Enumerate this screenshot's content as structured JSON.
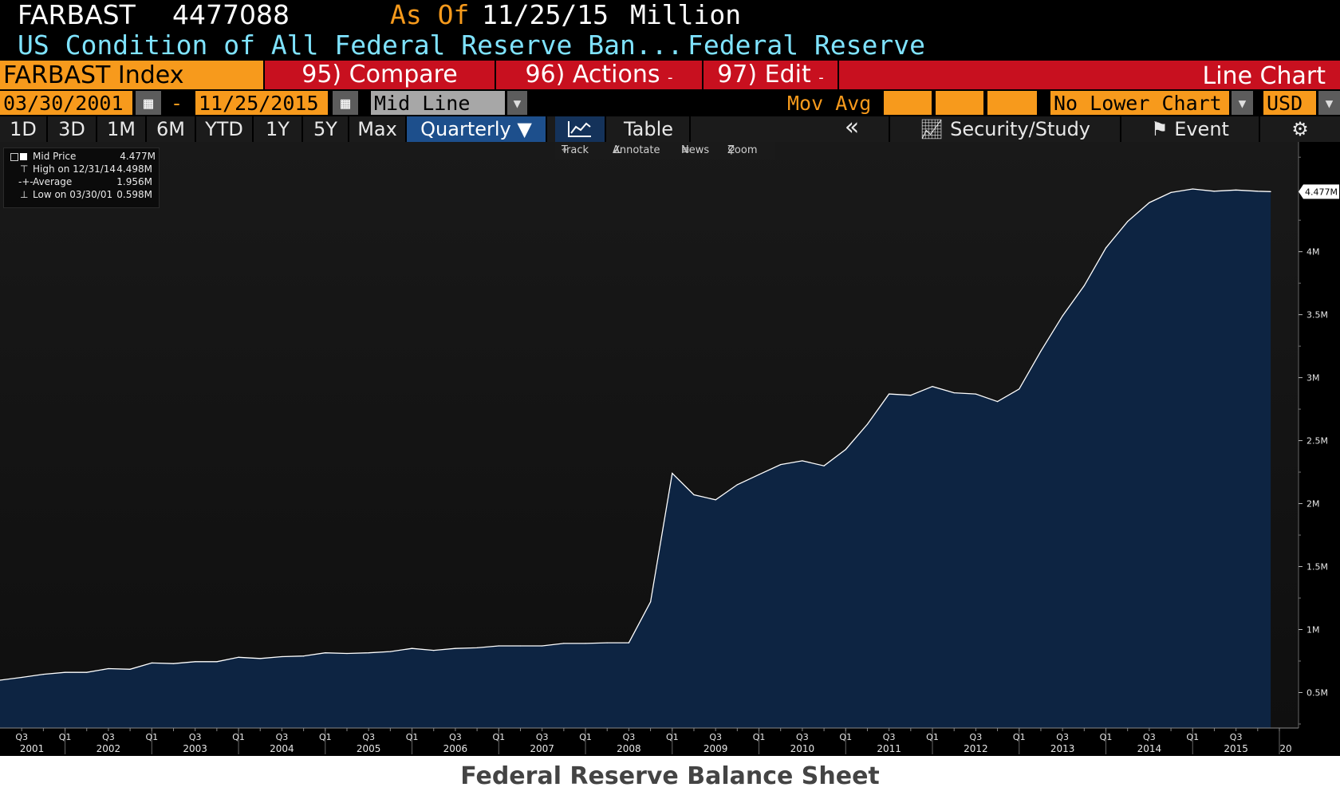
{
  "header": {
    "ticker": "FARBAST",
    "last_value": "4477088",
    "as_of_label": "As Of",
    "as_of_date": "11/25/15",
    "units": "Million",
    "description": "US Condition of All Federal Reserve Ban...",
    "source": "Federal Reserve"
  },
  "toolbar": {
    "index_name": "FARBAST Index",
    "compare_label": "95) Compare",
    "actions_label": "96) Actions",
    "actions_arrow": "-",
    "edit_label": "97) Edit",
    "edit_arrow": "-",
    "chart_type": "Line Chart"
  },
  "range": {
    "start_date": "03/30/2001",
    "separator": "-",
    "end_date": "11/25/2015",
    "line_type": "Mid Line",
    "mov_avg_label": "Mov Avg",
    "lower_chart": "No Lower Chart",
    "currency": "USD"
  },
  "periods": [
    "1D",
    "3D",
    "1M",
    "6M",
    "YTD",
    "1Y",
    "5Y",
    "Max"
  ],
  "frequency": "Quarterly ▼",
  "view_tabs": {
    "table": "Table",
    "collapse": "«",
    "security_study": "Security/Study",
    "event": "Event"
  },
  "chart_tools": {
    "track": "Track",
    "annotate": "Annotate",
    "news": "News",
    "zoom": "Zoom"
  },
  "legend": {
    "mid_price_label": "Mid Price",
    "mid_price_value": "4.477M",
    "high_label": "High on 12/31/14",
    "high_value": "4.498M",
    "average_label": "Average",
    "average_value": "1.956M",
    "low_label": "Low on 03/30/01",
    "low_value": "0.598M"
  },
  "last_price_tag": "4.477M",
  "caption": "Federal Reserve Balance Sheet",
  "colors": {
    "orange": "#f79a1c",
    "red": "#c8101f",
    "cyan": "#7fe3ff",
    "fill": "#0d2442",
    "line": "#ffffff"
  },
  "chart_data": {
    "type": "area",
    "title": "",
    "xlabel": "",
    "ylabel": "",
    "ylim": [
      0.25,
      5.0
    ],
    "y_ticks": [
      0.5,
      1,
      1.5,
      2,
      2.5,
      3,
      3.5,
      4
    ],
    "y_tick_labels": [
      "0.5M",
      "1M",
      "1.5M",
      "2M",
      "2.5M",
      "3M",
      "3.5M",
      "4M"
    ],
    "x_years": [
      "2001",
      "2002",
      "2003",
      "2004",
      "2005",
      "2006",
      "2007",
      "2008",
      "2009",
      "2010",
      "2011",
      "2012",
      "2013",
      "2014",
      "2015"
    ],
    "x_year_stub": "20",
    "x_quarter_labels": [
      {
        "year": 2001,
        "q": "Q3"
      },
      {
        "year": 2002,
        "q": "Q1"
      },
      {
        "year": 2002,
        "q": "Q3"
      },
      {
        "year": 2003,
        "q": "Q1"
      },
      {
        "year": 2003,
        "q": "Q3"
      },
      {
        "year": 2004,
        "q": "Q1"
      },
      {
        "year": 2004,
        "q": "Q3"
      },
      {
        "year": 2005,
        "q": "Q1"
      },
      {
        "year": 2005,
        "q": "Q3"
      },
      {
        "year": 2006,
        "q": "Q1"
      },
      {
        "year": 2006,
        "q": "Q3"
      },
      {
        "year": 2007,
        "q": "Q1"
      },
      {
        "year": 2007,
        "q": "Q3"
      },
      {
        "year": 2008,
        "q": "Q1"
      },
      {
        "year": 2008,
        "q": "Q3"
      },
      {
        "year": 2009,
        "q": "Q1"
      },
      {
        "year": 2009,
        "q": "Q3"
      },
      {
        "year": 2010,
        "q": "Q1"
      },
      {
        "year": 2010,
        "q": "Q3"
      },
      {
        "year": 2011,
        "q": "Q1"
      },
      {
        "year": 2011,
        "q": "Q3"
      },
      {
        "year": 2012,
        "q": "Q1"
      },
      {
        "year": 2012,
        "q": "Q3"
      },
      {
        "year": 2013,
        "q": "Q1"
      },
      {
        "year": 2013,
        "q": "Q3"
      },
      {
        "year": 2014,
        "q": "Q1"
      },
      {
        "year": 2014,
        "q": "Q3"
      },
      {
        "year": 2015,
        "q": "Q1"
      },
      {
        "year": 2015,
        "q": "Q3"
      }
    ],
    "series": [
      {
        "values": [
          [
            2001.25,
            0.598
          ],
          [
            2001.5,
            0.62
          ],
          [
            2001.75,
            0.645
          ],
          [
            2002.0,
            0.66
          ],
          [
            2002.25,
            0.66
          ],
          [
            2002.5,
            0.69
          ],
          [
            2002.75,
            0.685
          ],
          [
            2003.0,
            0.735
          ],
          [
            2003.25,
            0.73
          ],
          [
            2003.5,
            0.745
          ],
          [
            2003.75,
            0.745
          ],
          [
            2004.0,
            0.78
          ],
          [
            2004.25,
            0.77
          ],
          [
            2004.5,
            0.785
          ],
          [
            2004.75,
            0.79
          ],
          [
            2005.0,
            0.815
          ],
          [
            2005.25,
            0.81
          ],
          [
            2005.5,
            0.815
          ],
          [
            2005.75,
            0.825
          ],
          [
            2006.0,
            0.85
          ],
          [
            2006.25,
            0.835
          ],
          [
            2006.5,
            0.85
          ],
          [
            2006.75,
            0.855
          ],
          [
            2007.0,
            0.87
          ],
          [
            2007.25,
            0.87
          ],
          [
            2007.5,
            0.87
          ],
          [
            2007.75,
            0.89
          ],
          [
            2008.0,
            0.89
          ],
          [
            2008.25,
            0.895
          ],
          [
            2008.5,
            0.895
          ],
          [
            2008.75,
            1.22
          ],
          [
            2009.0,
            2.24
          ],
          [
            2009.25,
            2.07
          ],
          [
            2009.5,
            2.03
          ],
          [
            2009.75,
            2.15
          ],
          [
            2010.0,
            2.23
          ],
          [
            2010.25,
            2.31
          ],
          [
            2010.5,
            2.34
          ],
          [
            2010.75,
            2.3
          ],
          [
            2011.0,
            2.43
          ],
          [
            2011.25,
            2.63
          ],
          [
            2011.5,
            2.87
          ],
          [
            2011.75,
            2.86
          ],
          [
            2012.0,
            2.93
          ],
          [
            2012.25,
            2.88
          ],
          [
            2012.5,
            2.87
          ],
          [
            2012.75,
            2.81
          ],
          [
            2013.0,
            2.91
          ],
          [
            2013.25,
            3.21
          ],
          [
            2013.5,
            3.49
          ],
          [
            2013.75,
            3.73
          ],
          [
            2014.0,
            4.03
          ],
          [
            2014.25,
            4.24
          ],
          [
            2014.5,
            4.39
          ],
          [
            2014.75,
            4.47
          ],
          [
            2015.0,
            4.498
          ],
          [
            2015.25,
            4.48
          ],
          [
            2015.5,
            4.49
          ],
          [
            2015.75,
            4.48
          ],
          [
            2015.9,
            4.477
          ]
        ]
      }
    ]
  }
}
